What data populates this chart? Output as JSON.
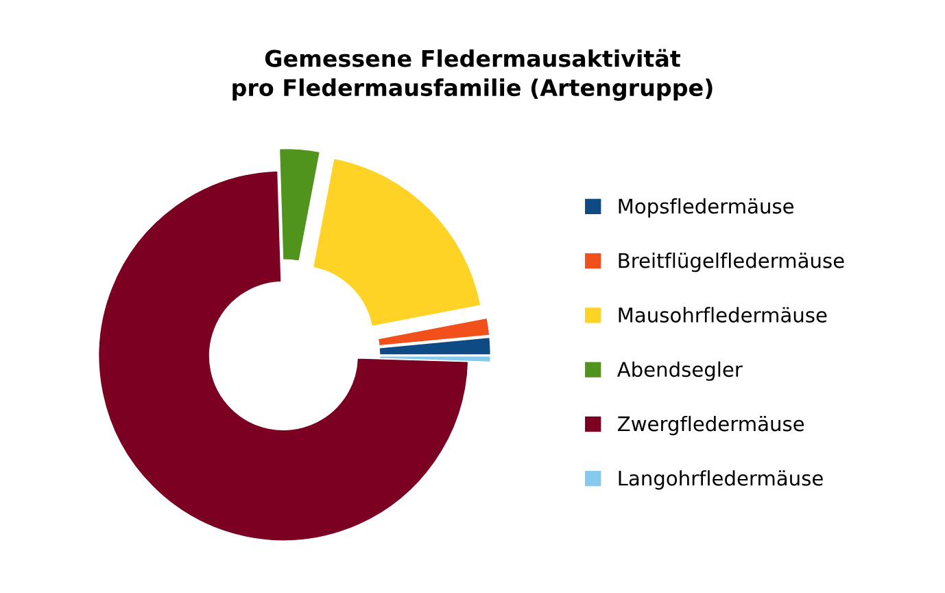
{
  "chart_data": {
    "type": "donut",
    "title": "Gemessene Fledermausaktivität\npro Fledermausfamilie (Artengruppe)",
    "categories": [
      "Mopsfledermäuse",
      "Breitflügelfledermäuse",
      "Mausohrfledermäuse",
      "Abendsegler",
      "Zwergfledermäuse",
      "Langohrfledermäuse"
    ],
    "values": [
      1.5,
      1.5,
      19,
      3.5,
      74,
      0.5
    ],
    "colors": [
      "#0e4a84",
      "#f2501b",
      "#ffd325",
      "#51941d",
      "#7b0022",
      "#86c9ef"
    ],
    "legend": "right"
  }
}
